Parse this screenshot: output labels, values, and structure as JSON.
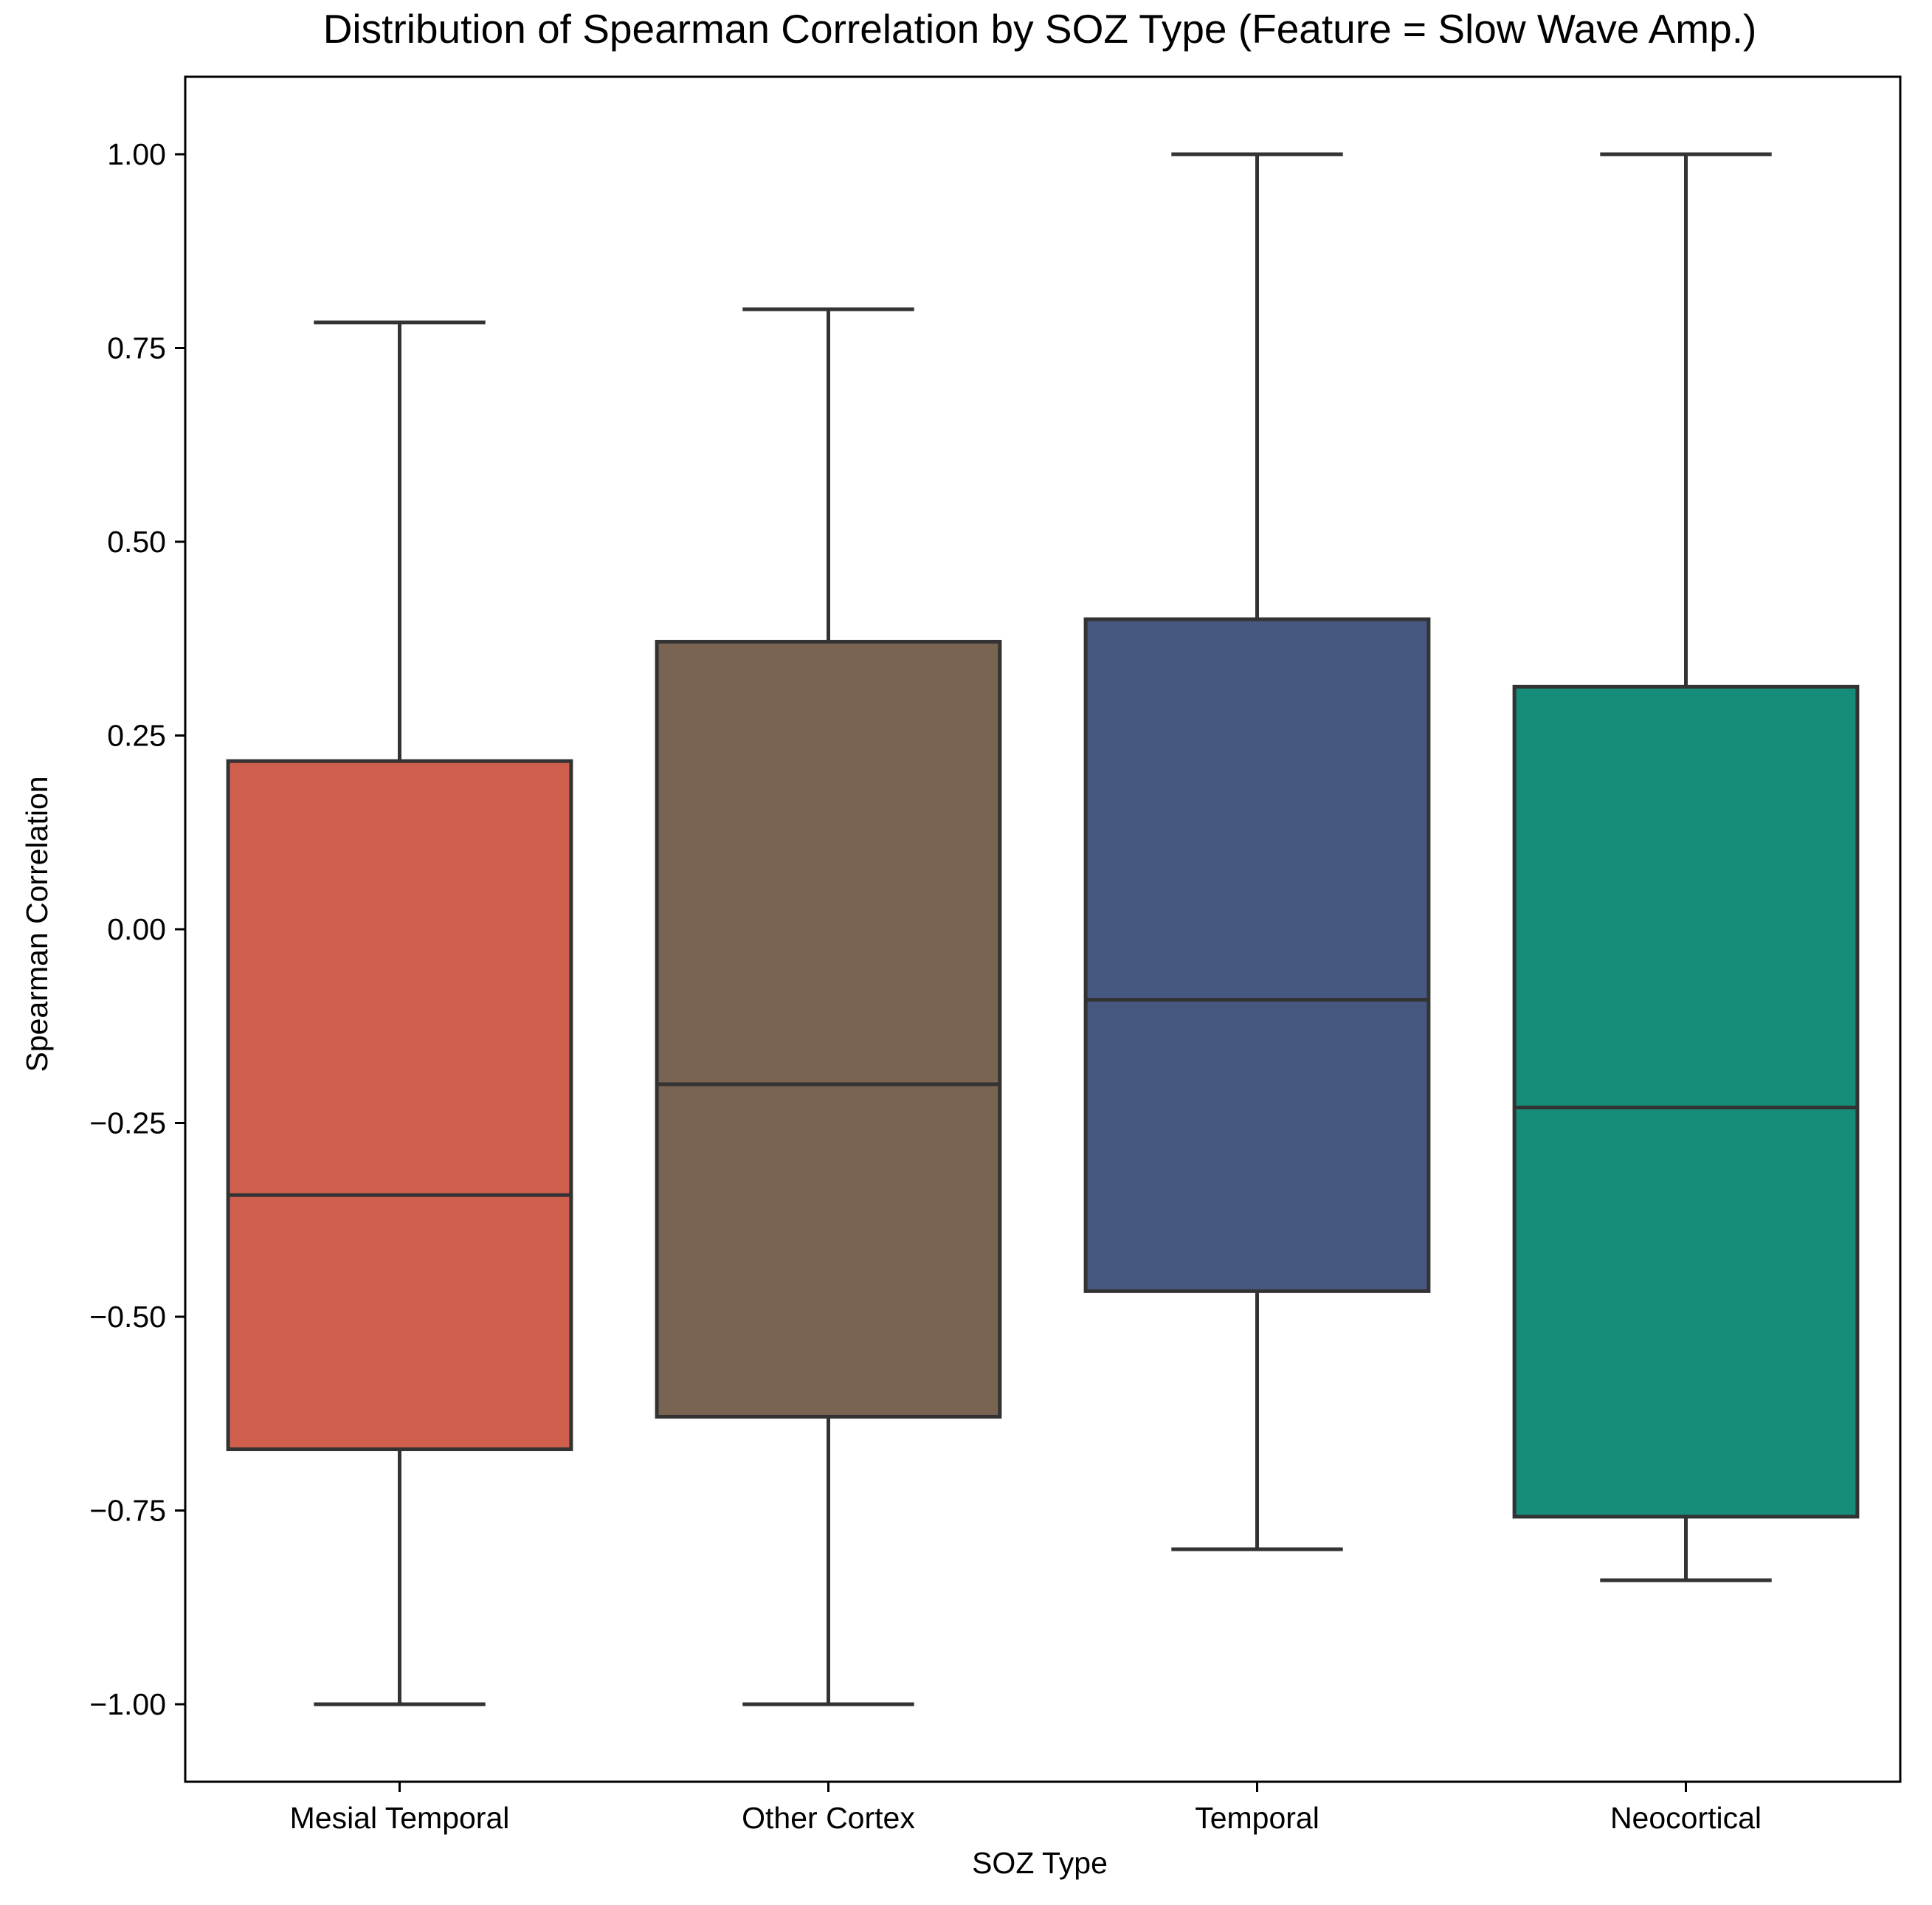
{
  "chart_data": {
    "type": "box",
    "title": "Distribution of Spearman Correlation by SOZ Type (Feature = Slow Wave Amp.)",
    "xlabel": "SOZ Type",
    "ylabel": "Spearman Correlation",
    "ylim": [
      -1.1,
      1.1
    ],
    "yticks": [
      1.0,
      0.75,
      0.5,
      0.25,
      0.0,
      -0.25,
      -0.5,
      -0.75,
      -1.0
    ],
    "ytick_labels": [
      "1.00",
      "0.75",
      "0.50",
      "0.25",
      "0.00",
      "−0.25",
      "−0.50",
      "−0.75",
      "−1.00"
    ],
    "grid": false,
    "categories": [
      "Mesial Temporal",
      "Other Cortex",
      "Temporal",
      "Neocortical"
    ],
    "boxes": [
      {
        "category": "Mesial Temporal",
        "whisker_low": -1.0,
        "q1": -0.671,
        "median": -0.343,
        "q3": 0.217,
        "whisker_high": 0.783,
        "color": "#d05f4d"
      },
      {
        "category": "Other Cortex",
        "whisker_low": -1.0,
        "q1": -0.629,
        "median": -0.2,
        "q3": 0.371,
        "whisker_high": 0.8,
        "color": "#786450"
      },
      {
        "category": "Temporal",
        "whisker_low": -0.8,
        "q1": -0.467,
        "median": -0.091,
        "q3": 0.4,
        "whisker_high": 1.0,
        "color": "#46587f"
      },
      {
        "category": "Neocortical",
        "whisker_low": -0.84,
        "q1": -0.758,
        "median": -0.23,
        "q3": 0.313,
        "whisker_high": 1.0,
        "color": "#168d79"
      }
    ],
    "line_color": "#333333"
  }
}
